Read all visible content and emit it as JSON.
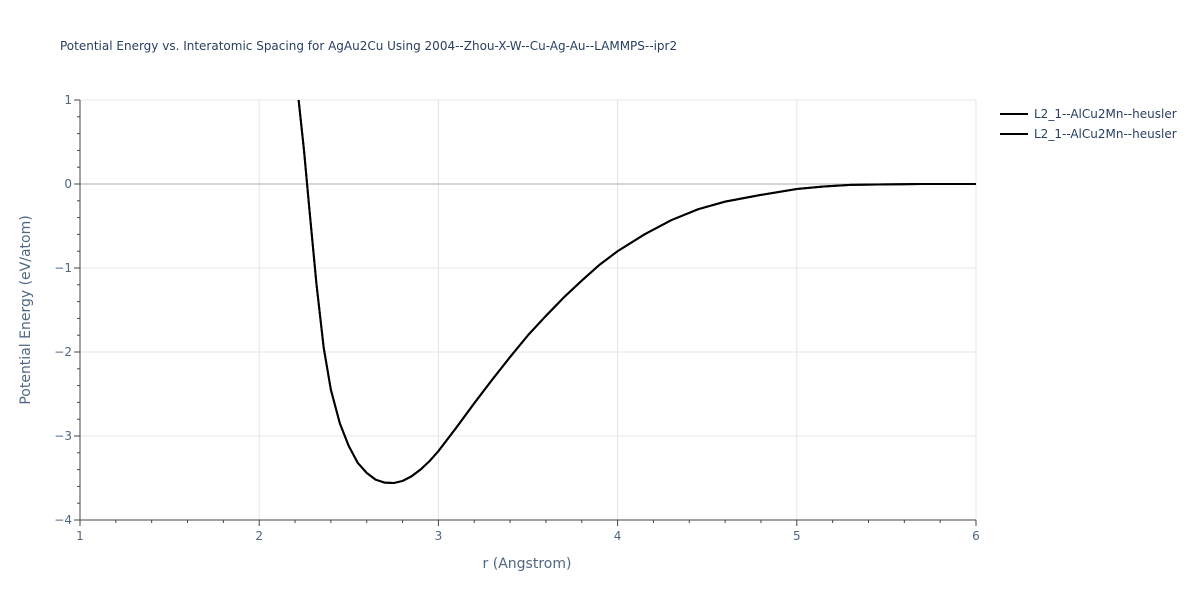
{
  "chart_data": {
    "type": "line",
    "title": "Potential Energy vs. Interatomic Spacing for AgAu2Cu Using 2004--Zhou-X-W--Cu-Ag-Au--LAMMPS--ipr2",
    "xlabel": "r (Angstrom)",
    "ylabel": "Potential Energy (eV/atom)",
    "xlim": [
      1,
      6
    ],
    "ylim": [
      -4,
      1
    ],
    "x_ticks": [
      1,
      2,
      3,
      4,
      5,
      6
    ],
    "y_ticks": [
      1,
      0,
      -1,
      -2,
      -3,
      -4
    ],
    "x_tick_labels": [
      "1",
      "2",
      "3",
      "4",
      "5",
      "6"
    ],
    "y_tick_labels": [
      "1",
      "0",
      "−1",
      "−2",
      "−3",
      "−4"
    ],
    "grid": true,
    "legend_position": "top-right",
    "series": [
      {
        "name": "L2_1--AlCu2Mn--heusler",
        "color": "#000000",
        "x": [
          2.22,
          2.25,
          2.28,
          2.32,
          2.36,
          2.4,
          2.45,
          2.5,
          2.55,
          2.6,
          2.65,
          2.7,
          2.75,
          2.8,
          2.85,
          2.9,
          2.95,
          3.0,
          3.1,
          3.2,
          3.3,
          3.4,
          3.5,
          3.6,
          3.7,
          3.8,
          3.9,
          4.0,
          4.15,
          4.3,
          4.45,
          4.6,
          4.8,
          5.0,
          5.15,
          5.3,
          5.5,
          5.7,
          6.0
        ],
        "y": [
          1.0,
          0.4,
          -0.3,
          -1.2,
          -1.95,
          -2.45,
          -2.85,
          -3.12,
          -3.32,
          -3.44,
          -3.52,
          -3.555,
          -3.56,
          -3.535,
          -3.48,
          -3.4,
          -3.3,
          -3.18,
          -2.9,
          -2.61,
          -2.33,
          -2.06,
          -1.8,
          -1.57,
          -1.35,
          -1.15,
          -0.96,
          -0.8,
          -0.6,
          -0.43,
          -0.3,
          -0.21,
          -0.13,
          -0.06,
          -0.03,
          -0.01,
          -0.005,
          0.0,
          0.0
        ]
      },
      {
        "name": "L2_1--AlCu2Mn--heusler",
        "color": "#000000",
        "x": [
          2.22,
          2.25,
          2.28,
          2.32,
          2.36,
          2.4,
          2.45,
          2.5,
          2.55,
          2.6,
          2.65,
          2.7,
          2.75,
          2.8,
          2.85,
          2.9,
          2.95,
          3.0,
          3.1,
          3.2,
          3.3,
          3.4,
          3.5,
          3.6,
          3.7,
          3.8,
          3.9,
          4.0,
          4.15,
          4.3,
          4.45,
          4.6,
          4.8,
          5.0,
          5.15,
          5.3,
          5.5,
          5.7,
          6.0
        ],
        "y": [
          1.0,
          0.4,
          -0.3,
          -1.2,
          -1.95,
          -2.45,
          -2.85,
          -3.12,
          -3.32,
          -3.44,
          -3.52,
          -3.555,
          -3.56,
          -3.535,
          -3.48,
          -3.4,
          -3.3,
          -3.18,
          -2.9,
          -2.61,
          -2.33,
          -2.06,
          -1.8,
          -1.57,
          -1.35,
          -1.15,
          -0.96,
          -0.8,
          -0.6,
          -0.43,
          -0.3,
          -0.21,
          -0.13,
          -0.06,
          -0.03,
          -0.01,
          -0.005,
          0.0,
          0.0
        ]
      }
    ]
  }
}
